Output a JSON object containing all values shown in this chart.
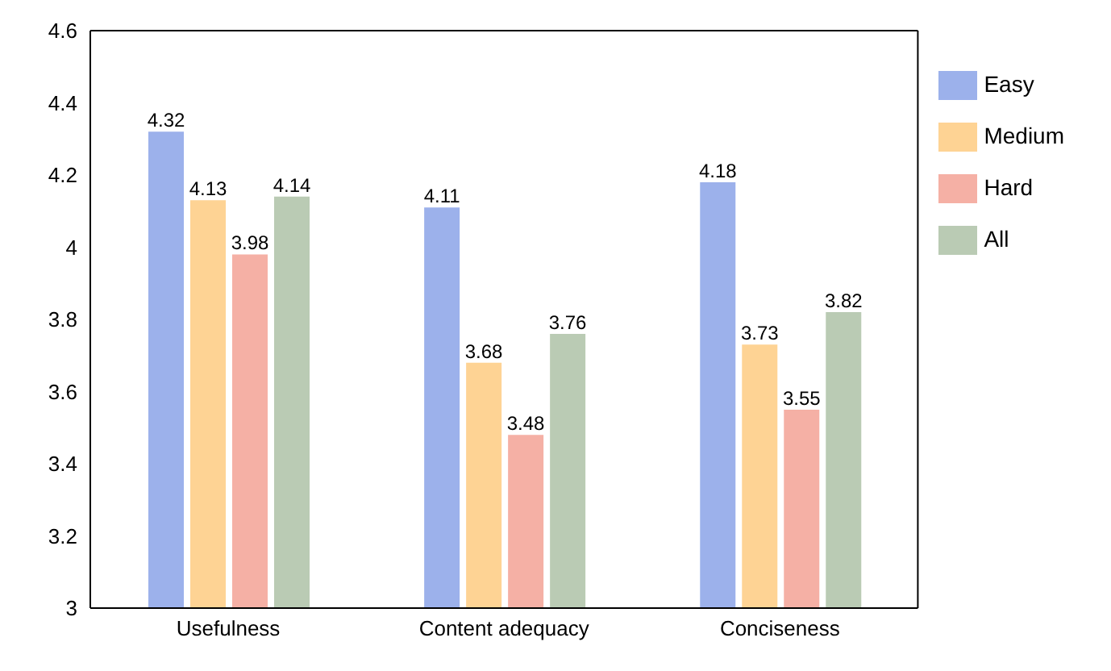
{
  "chart_data": {
    "type": "bar",
    "categories": [
      "Usefulness",
      "Content adequacy",
      "Conciseness"
    ],
    "series": [
      {
        "name": "Easy",
        "color": "#9cb1eb",
        "values": [
          4.32,
          4.11,
          4.18
        ]
      },
      {
        "name": "Medium",
        "color": "#fed394",
        "values": [
          4.13,
          3.68,
          3.73
        ]
      },
      {
        "name": "Hard",
        "color": "#f5b0a5",
        "values": [
          3.98,
          3.48,
          3.55
        ]
      },
      {
        "name": "All",
        "color": "#bacbb4",
        "values": [
          4.14,
          3.76,
          3.82
        ]
      }
    ],
    "ylim": [
      3,
      4.6
    ],
    "yticks": [
      3,
      3.2,
      3.4,
      3.6,
      3.8,
      4,
      4.2,
      4.4,
      4.6
    ],
    "data_labels": true,
    "legend": "top right",
    "grid": false
  }
}
